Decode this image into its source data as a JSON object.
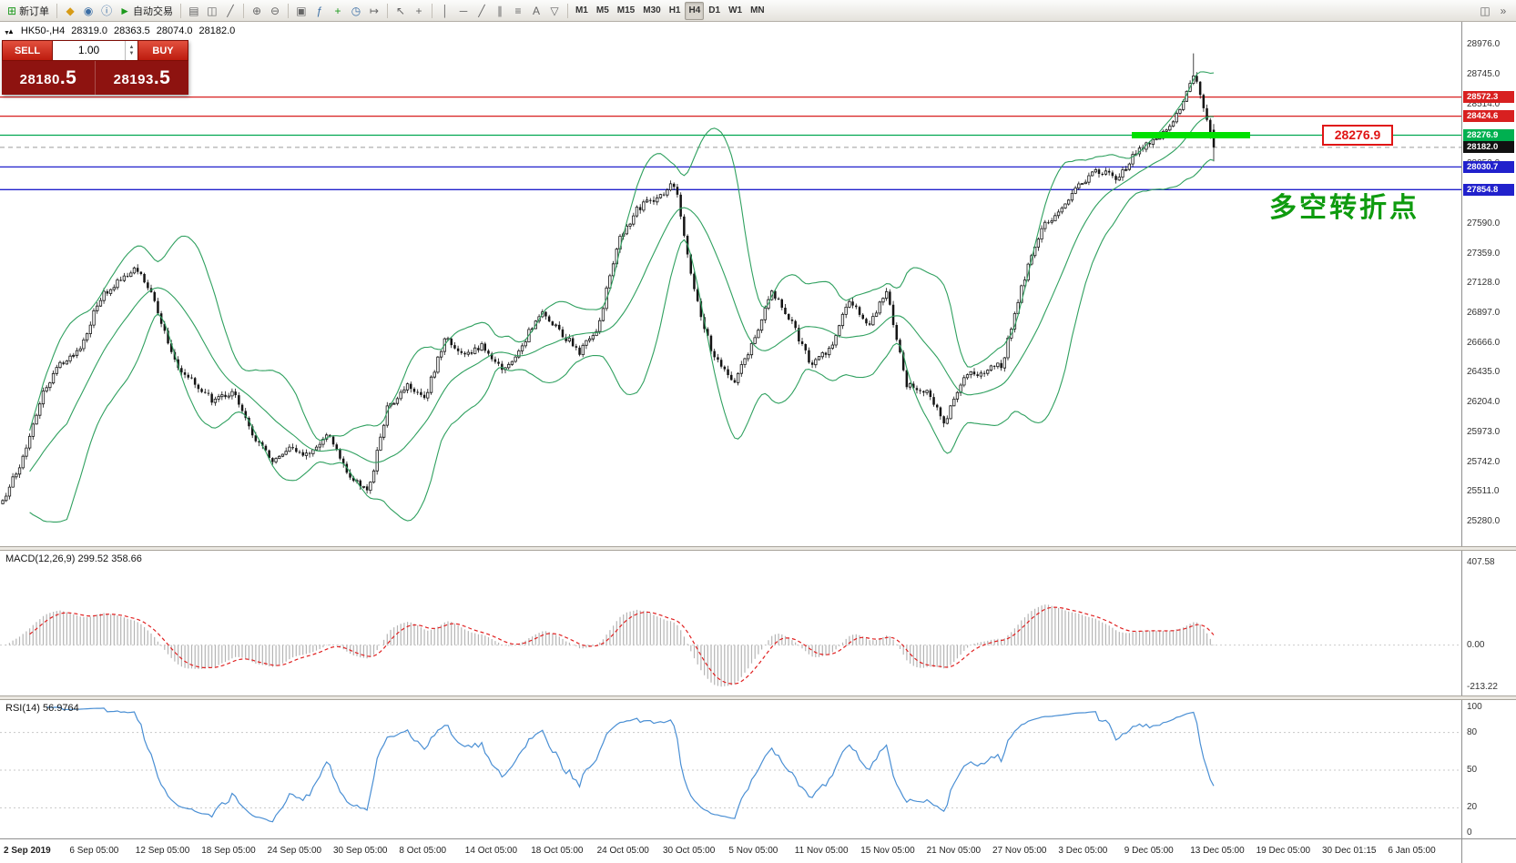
{
  "toolbar": {
    "new_order_label": "新订单",
    "autotrading_label": "自动交易",
    "timeframes": [
      "M1",
      "M5",
      "M15",
      "M30",
      "H1",
      "H4",
      "D1",
      "W1",
      "MN"
    ],
    "active_timeframe": "H4"
  },
  "icons": {
    "new_order": "⊞",
    "metaquotes": "◆",
    "market_watch": "◉",
    "info": "ⓘ",
    "autotrading_play": "►",
    "bar_chart": "▤",
    "candle_chart": "◫",
    "line_chart": "╱",
    "zoom_in": "⊕",
    "zoom_out": "⊖",
    "tile_windows": "▣",
    "indicator_list": "ƒ",
    "add_indicator": "+",
    "period_clock": "◷",
    "chart_shift": "↦",
    "cursor": "↖",
    "crosshair": "+",
    "vertical_line": "│",
    "horizontal_line": "─",
    "trendline": "╱",
    "channel": "∥",
    "fibonacci": "≡",
    "text_tool": "A",
    "arrow_tool": "▽",
    "collapse_panel": "▼",
    "spin_up": "▲",
    "spin_down": "▼",
    "dock_window": "◫",
    "toolbar_more": "»",
    "symbol_trend": "▲"
  },
  "symbol_header": {
    "symbol": "HK50-,H4",
    "open": "28319.0",
    "high": "28363.5",
    "low": "28074.0",
    "close": "28182.0"
  },
  "trade_panel": {
    "sell_label": "SELL",
    "buy_label": "BUY",
    "volume": "1.00",
    "sell_price_main": "28180",
    "sell_price_frac": ".5",
    "buy_price_main": "28193",
    "buy_price_frac": ".5"
  },
  "annotation": {
    "text": "多空转折点",
    "color": "#0f9b0f"
  },
  "price_label_box": {
    "text": "28276.9",
    "color": "#e01515"
  },
  "levels": [
    {
      "price": 28572.3,
      "label": "28572.3",
      "line_color": "#d82020",
      "tag_bg": "#d82020",
      "dashed": false,
      "thick_segment": false
    },
    {
      "price": 28424.6,
      "label": "28424.6",
      "line_color": "#d82020",
      "tag_bg": "#d82020",
      "dashed": false,
      "thick_segment": false
    },
    {
      "price": 28276.9,
      "label": "28276.9",
      "line_color": "#00a651",
      "tag_bg": "#00b050",
      "dashed": false,
      "thick_segment": true
    },
    {
      "price": 28182.0,
      "label": "28182.0",
      "line_color": "#9a9a9a",
      "tag_bg": "#111111",
      "dashed": true,
      "thick_segment": false
    },
    {
      "price": 28030.7,
      "label": "28030.7",
      "line_color": "#2121cc",
      "tag_bg": "#2121cc",
      "dashed": false,
      "thick_segment": false
    },
    {
      "price": 27854.8,
      "label": "27854.8",
      "line_color": "#2121cc",
      "tag_bg": "#2121cc",
      "dashed": false,
      "thick_segment": false
    }
  ],
  "price_axis_labels": [
    "28976.0",
    "28745.0",
    "28514.0",
    "28283.0",
    "28052.0",
    "27821.0",
    "27590.0",
    "27359.0",
    "27128.0",
    "26897.0",
    "26666.0",
    "26435.0",
    "26204.0",
    "25973.0",
    "25742.0",
    "25511.0",
    "25280.0"
  ],
  "time_axis": [
    "2 Sep 2019",
    "6 Sep 05:00",
    "12 Sep 05:00",
    "18 Sep 05:00",
    "24 Sep 05:00",
    "30 Sep 05:00",
    "8 Oct 05:00",
    "14 Oct 05:00",
    "18 Oct 05:00",
    "24 Oct 05:00",
    "30 Oct 05:00",
    "5 Nov 05:00",
    "11 Nov 05:00",
    "15 Nov 05:00",
    "21 Nov 05:00",
    "27 Nov 05:00",
    "3 Dec 05:00",
    "9 Dec 05:00",
    "13 Dec 05:00",
    "19 Dec 05:00",
    "30 Dec 01:15",
    "6 Jan 05:00"
  ],
  "macd_panel": {
    "label": "MACD(12,26,9)",
    "value_main": "299.52",
    "value_signal": "358.66",
    "axis_labels": [
      "407.58",
      "0.00",
      "-213.22"
    ],
    "histogram_color": "#b5b5b5",
    "signal_color": "#e02020"
  },
  "rsi_panel": {
    "label": "RSI(14)",
    "value": "56.9764",
    "axis_labels": [
      "100",
      "80",
      "50",
      "20",
      "0"
    ],
    "level_lines": [
      80,
      50,
      20
    ],
    "line_color": "#4a8fd4"
  },
  "chart_data": {
    "type": "candlestick",
    "symbol": "HK50-",
    "timeframe": "H4",
    "current_ohlc": {
      "open": 28319.0,
      "high": 28363.5,
      "low": 28074.0,
      "close": 28182.0
    },
    "bid": 28180.5,
    "ask": 28193.5,
    "visible_price_range": [
      25175,
      29085
    ],
    "close_anchors": [
      25450,
      25750,
      26250,
      26500,
      26600,
      27000,
      27150,
      27250,
      26950,
      26500,
      26350,
      26200,
      26300,
      25950,
      25750,
      25850,
      25800,
      25950,
      25650,
      25500,
      26150,
      26350,
      26250,
      26700,
      26550,
      26650,
      26450,
      26650,
      26900,
      26750,
      26600,
      26800,
      27450,
      27700,
      27800,
      27900,
      27050,
      26550,
      26350,
      26650,
      27050,
      26850,
      26500,
      26600,
      27000,
      26800,
      27050,
      26350,
      26300,
      26050,
      26400,
      26450,
      26500,
      27100,
      27550,
      27700,
      27900,
      28000,
      27950,
      28150,
      28250,
      28400,
      28750,
      28182
    ],
    "overlays": [
      {
        "name": "Bollinger Bands",
        "color": "#2fa05f"
      }
    ],
    "indicators": [
      {
        "name": "MACD",
        "params": [
          12,
          26,
          9
        ],
        "current_values": [
          299.52,
          358.66
        ]
      },
      {
        "name": "RSI",
        "params": [
          14
        ],
        "current_value": 56.9764
      }
    ],
    "horizontal_levels": [
      28572.3,
      28424.6,
      28276.9,
      28030.7,
      27854.8
    ],
    "time_range": [
      "2 Sep 2019",
      "6 Jan 05:00"
    ]
  }
}
